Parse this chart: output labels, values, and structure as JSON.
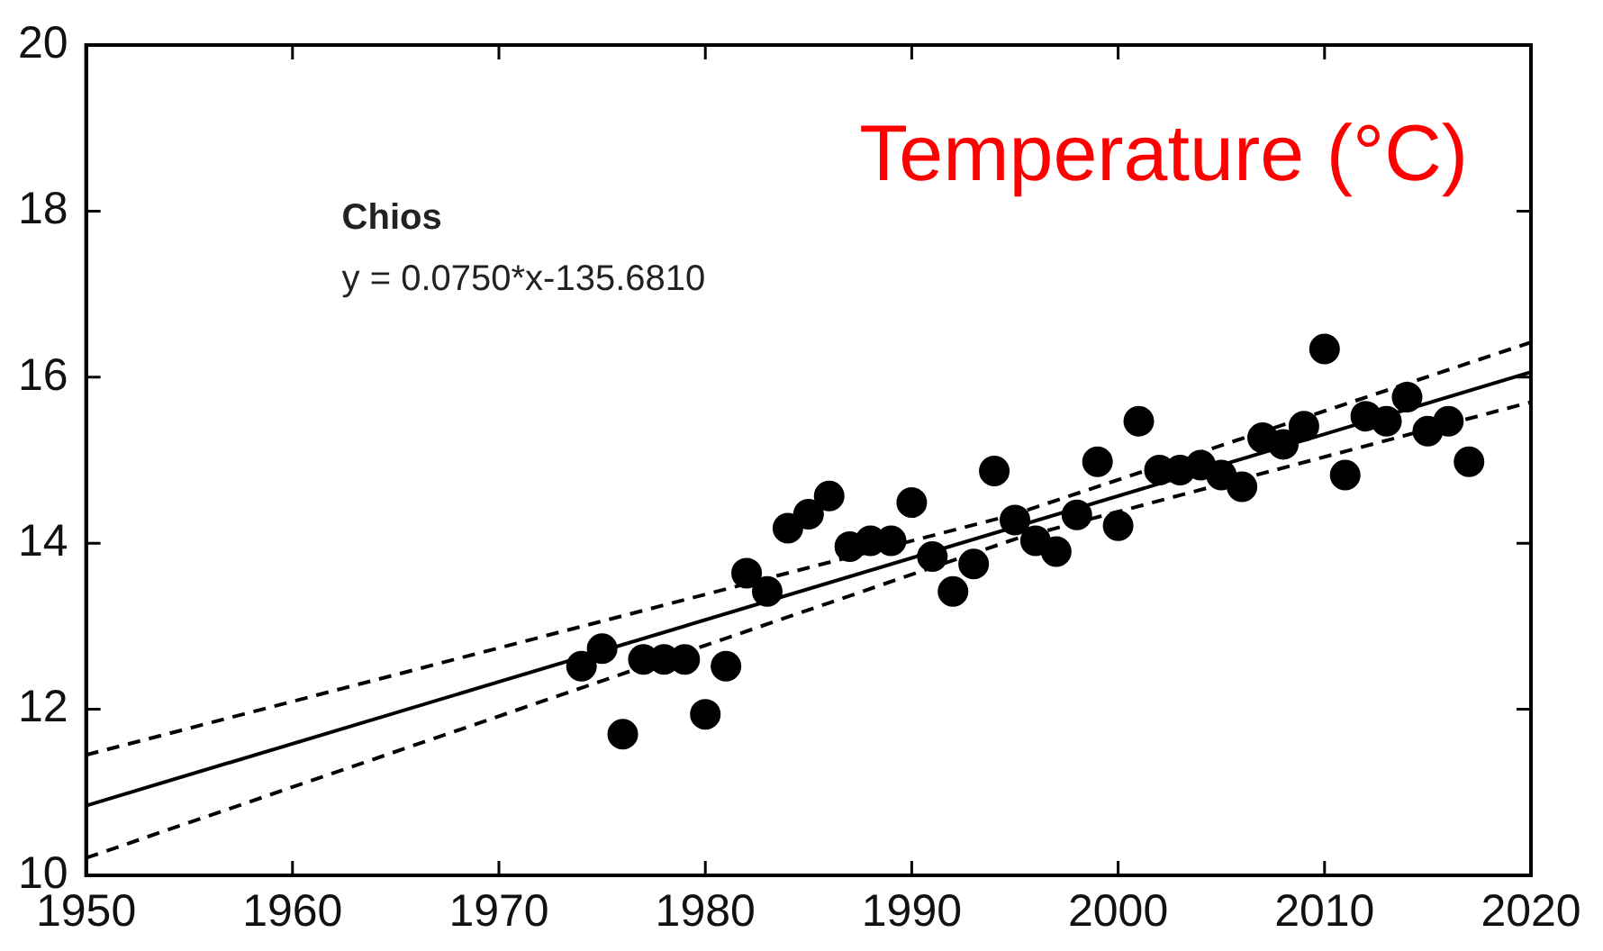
{
  "chart_data": {
    "type": "scatter",
    "title": "Temperature (°C)",
    "annotations": [
      "Chios",
      "y = 0.0750*x-135.6810"
    ],
    "xlim": [
      1950,
      2020
    ],
    "xticks": [
      1950,
      1960,
      1970,
      1980,
      1990,
      2000,
      2010,
      2020
    ],
    "ylim": [
      10,
      20
    ],
    "yticks": [
      10,
      12,
      14,
      16,
      18,
      20
    ],
    "grid": false,
    "legend": false,
    "series": [
      {
        "color": "#000000",
        "marker": "circle",
        "x": [
          1974,
          1975,
          1976,
          1977,
          1978,
          1979,
          1980,
          1981,
          1982,
          1983,
          1984,
          1985,
          1986,
          1987,
          1988,
          1989,
          1990,
          1991,
          1992,
          1993,
          1994,
          1995,
          1996,
          1997,
          1998,
          1999,
          2000,
          2001,
          2002,
          2003,
          2004,
          2005,
          2006,
          2007,
          2008,
          2009,
          2010,
          2011,
          2012,
          2013,
          2014,
          2015,
          2016,
          2017
        ],
        "values": [
          12.52,
          12.73,
          11.7,
          12.6,
          12.6,
          12.6,
          11.94,
          12.52,
          13.64,
          13.42,
          14.18,
          14.35,
          14.57,
          13.96,
          14.03,
          14.03,
          14.49,
          13.84,
          13.42,
          13.75,
          14.87,
          14.28,
          14.03,
          13.9,
          14.34,
          14.98,
          14.21,
          15.47,
          14.88,
          14.88,
          14.94,
          14.82,
          14.68,
          15.27,
          15.19,
          15.41,
          16.34,
          14.82,
          15.53,
          15.47,
          15.76,
          15.35,
          15.47,
          14.98
        ]
      },
      {
        "type": "line",
        "color": "#000000",
        "line_style": "solid",
        "marker": "none",
        "x": [
          1950,
          2020
        ],
        "values": [
          10.84,
          16.06
        ]
      },
      {
        "type": "line",
        "color": "#000000",
        "line_style": "dashed",
        "marker": "none",
        "x": [
          1950,
          1995,
          2020
        ],
        "values": [
          11.45,
          14.35,
          16.42
        ]
      },
      {
        "type": "line",
        "color": "#000000",
        "line_style": "dashed",
        "marker": "none",
        "x": [
          1950,
          1995,
          2020
        ],
        "values": [
          10.21,
          14.05,
          15.7
        ]
      }
    ]
  }
}
